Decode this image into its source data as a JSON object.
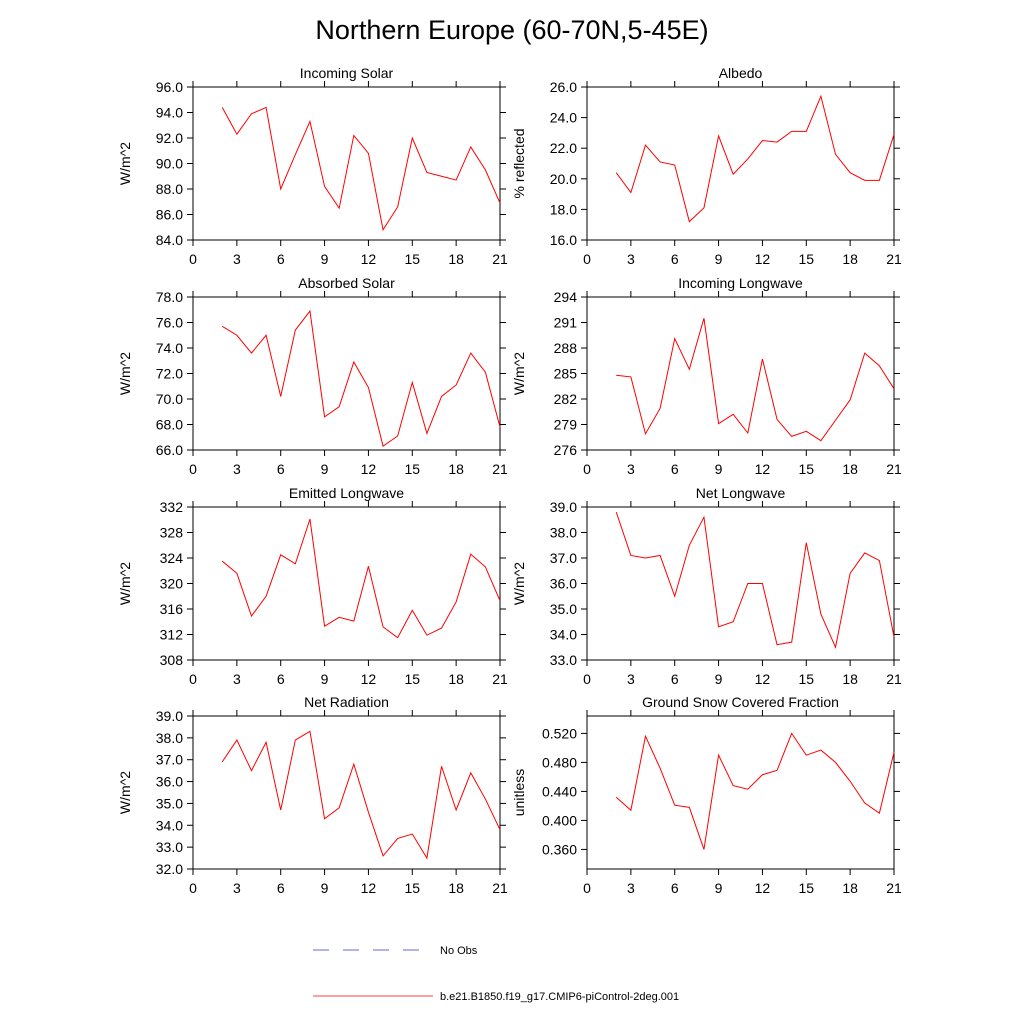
{
  "title": "Northern Europe (60-70N,5-45E)",
  "chart_data": [
    {
      "type": "line",
      "title": "Incoming Solar",
      "y_label": "W/m^2",
      "x": [
        2,
        3,
        4,
        5,
        6,
        7,
        8,
        9,
        10,
        11,
        12,
        13,
        14,
        15,
        16,
        17,
        18,
        19,
        20,
        21
      ],
      "xlim": [
        0,
        21
      ],
      "xticks": [
        0,
        3,
        6,
        9,
        12,
        15,
        18,
        21
      ],
      "ylim": [
        84,
        96
      ],
      "yticks": [
        {
          "value": 84,
          "label": "84.0"
        },
        {
          "value": 86,
          "label": "86.0"
        },
        {
          "value": 88,
          "label": "88.0"
        },
        {
          "value": 90,
          "label": "90.0"
        },
        {
          "value": 92,
          "label": "92.0"
        },
        {
          "value": 94,
          "label": "94.0"
        },
        {
          "value": 96,
          "label": "96.0"
        }
      ],
      "series": [
        {
          "color": "#ff0000",
          "values": [
            94.4,
            92.3,
            93.9,
            94.4,
            88.0,
            90.7,
            93.3,
            88.2,
            86.5,
            92.2,
            90.8,
            84.8,
            86.6,
            92.0,
            89.3,
            89.0,
            88.7,
            91.3,
            89.5,
            86.9
          ]
        }
      ]
    },
    {
      "type": "line",
      "title": "Albedo",
      "y_label": "% reflected",
      "x": [
        2,
        3,
        4,
        5,
        6,
        7,
        8,
        9,
        10,
        11,
        12,
        13,
        14,
        15,
        16,
        17,
        18,
        19,
        20,
        21
      ],
      "xlim": [
        0,
        21
      ],
      "xticks": [
        0,
        3,
        6,
        9,
        12,
        15,
        18,
        21
      ],
      "ylim": [
        16,
        26
      ],
      "yticks": [
        {
          "value": 16,
          "label": "16.0"
        },
        {
          "value": 18,
          "label": "18.0"
        },
        {
          "value": 20,
          "label": "20.0"
        },
        {
          "value": 22,
          "label": "22.0"
        },
        {
          "value": 24,
          "label": "24.0"
        },
        {
          "value": 26,
          "label": "26.0"
        }
      ],
      "series": [
        {
          "color": "#ff0000",
          "values": [
            20.4,
            19.1,
            22.2,
            21.1,
            20.9,
            17.2,
            18.1,
            22.8,
            20.3,
            21.3,
            22.5,
            22.4,
            23.1,
            23.1,
            25.4,
            21.6,
            20.4,
            19.9,
            19.9,
            22.9
          ]
        }
      ]
    },
    {
      "type": "line",
      "title": "Absorbed Solar",
      "y_label": "W/m^2",
      "x": [
        2,
        3,
        4,
        5,
        6,
        7,
        8,
        9,
        10,
        11,
        12,
        13,
        14,
        15,
        16,
        17,
        18,
        19,
        20,
        21
      ],
      "xlim": [
        0,
        21
      ],
      "xticks": [
        0,
        3,
        6,
        9,
        12,
        15,
        18,
        21
      ],
      "ylim": [
        66,
        78
      ],
      "yticks": [
        {
          "value": 66,
          "label": "66.0"
        },
        {
          "value": 68,
          "label": "68.0"
        },
        {
          "value": 70,
          "label": "70.0"
        },
        {
          "value": 72,
          "label": "72.0"
        },
        {
          "value": 74,
          "label": "74.0"
        },
        {
          "value": 76,
          "label": "76.0"
        },
        {
          "value": 78,
          "label": "78.0"
        }
      ],
      "series": [
        {
          "color": "#ff0000",
          "values": [
            75.7,
            75.0,
            73.6,
            75.0,
            70.2,
            75.4,
            76.9,
            68.6,
            69.4,
            72.9,
            70.9,
            66.3,
            67.1,
            71.3,
            67.3,
            70.2,
            71.1,
            73.6,
            72.1,
            67.8
          ]
        }
      ]
    },
    {
      "type": "line",
      "title": "Incoming Longwave",
      "y_label": "W/m^2",
      "x": [
        2,
        3,
        4,
        5,
        6,
        7,
        8,
        9,
        10,
        11,
        12,
        13,
        14,
        15,
        16,
        17,
        18,
        19,
        20,
        21
      ],
      "xlim": [
        0,
        21
      ],
      "xticks": [
        0,
        3,
        6,
        9,
        12,
        15,
        18,
        21
      ],
      "ylim": [
        276,
        294
      ],
      "yticks": [
        276,
        279,
        282,
        285,
        288,
        291,
        294
      ],
      "series": [
        {
          "color": "#ff0000",
          "values": [
            284.8,
            284.6,
            277.9,
            280.9,
            289.1,
            285.5,
            291.5,
            279.1,
            280.2,
            278.0,
            286.7,
            279.6,
            277.6,
            278.2,
            277.1,
            279.5,
            281.9,
            287.4,
            285.9,
            283.2
          ]
        }
      ]
    },
    {
      "type": "line",
      "title": "Emitted Longwave",
      "y_label": "W/m^2",
      "x": [
        2,
        3,
        4,
        5,
        6,
        7,
        8,
        9,
        10,
        11,
        12,
        13,
        14,
        15,
        16,
        17,
        18,
        19,
        20,
        21
      ],
      "xlim": [
        0,
        21
      ],
      "xticks": [
        0,
        3,
        6,
        9,
        12,
        15,
        18,
        21
      ],
      "ylim": [
        308,
        332
      ],
      "yticks": [
        308,
        312,
        316,
        320,
        324,
        328,
        332
      ],
      "series": [
        {
          "color": "#ff0000",
          "values": [
            323.5,
            321.6,
            314.9,
            318.0,
            324.5,
            323.1,
            330.1,
            313.3,
            314.7,
            314.1,
            322.7,
            313.2,
            311.5,
            315.8,
            311.9,
            313.0,
            317.1,
            324.6,
            322.6,
            317.3
          ]
        }
      ]
    },
    {
      "type": "line",
      "title": "Net Longwave",
      "y_label": "W/m^2",
      "x": [
        2,
        3,
        4,
        5,
        6,
        7,
        8,
        9,
        10,
        11,
        12,
        13,
        14,
        15,
        16,
        17,
        18,
        19,
        20,
        21
      ],
      "xlim": [
        0,
        21
      ],
      "xticks": [
        0,
        3,
        6,
        9,
        12,
        15,
        18,
        21
      ],
      "ylim": [
        33,
        39
      ],
      "yticks": [
        {
          "value": 33,
          "label": "33.0"
        },
        {
          "value": 34,
          "label": "34.0"
        },
        {
          "value": 35,
          "label": "35.0"
        },
        {
          "value": 36,
          "label": "36.0"
        },
        {
          "value": 37,
          "label": "37.0"
        },
        {
          "value": 38,
          "label": "38.0"
        },
        {
          "value": 39,
          "label": "39.0"
        }
      ],
      "series": [
        {
          "color": "#ff0000",
          "values": [
            38.8,
            37.1,
            37.0,
            37.1,
            35.5,
            37.5,
            38.6,
            34.3,
            34.5,
            36.0,
            36.0,
            33.6,
            33.7,
            37.6,
            34.8,
            33.5,
            36.4,
            37.2,
            36.9,
            33.9
          ]
        }
      ]
    },
    {
      "type": "line",
      "title": "Net Radiation",
      "y_label": "W/m^2",
      "x": [
        2,
        3,
        4,
        5,
        6,
        7,
        8,
        9,
        10,
        11,
        12,
        13,
        14,
        15,
        16,
        17,
        18,
        19,
        20,
        21
      ],
      "xlim": [
        0,
        21
      ],
      "xticks": [
        0,
        3,
        6,
        9,
        12,
        15,
        18,
        21
      ],
      "ylim": [
        32,
        39
      ],
      "yticks": [
        {
          "value": 32,
          "label": "32.0"
        },
        {
          "value": 33,
          "label": "33.0"
        },
        {
          "value": 34,
          "label": "34.0"
        },
        {
          "value": 35,
          "label": "35.0"
        },
        {
          "value": 36,
          "label": "36.0"
        },
        {
          "value": 37,
          "label": "37.0"
        },
        {
          "value": 38,
          "label": "38.0"
        },
        {
          "value": 39,
          "label": "39.0"
        }
      ],
      "series": [
        {
          "color": "#ff0000",
          "values": [
            36.9,
            37.9,
            36.5,
            37.8,
            34.7,
            37.9,
            38.3,
            34.3,
            34.8,
            36.8,
            34.6,
            32.6,
            33.4,
            33.6,
            32.5,
            36.7,
            34.7,
            36.4,
            35.2,
            33.8
          ]
        }
      ]
    },
    {
      "type": "line",
      "title": "Ground Snow Covered Fraction",
      "y_label": "unitless",
      "x": [
        2,
        3,
        4,
        5,
        6,
        7,
        8,
        9,
        10,
        11,
        12,
        13,
        14,
        15,
        16,
        17,
        18,
        19,
        20,
        21
      ],
      "xlim": [
        0,
        21
      ],
      "xticks": [
        0,
        3,
        6,
        9,
        12,
        15,
        18,
        21
      ],
      "ylim": [
        0.333,
        0.544
      ],
      "yticks": [
        {
          "value": 0.36,
          "label": "0.360"
        },
        {
          "value": 0.4,
          "label": "0.400"
        },
        {
          "value": 0.44,
          "label": "0.440"
        },
        {
          "value": 0.48,
          "label": "0.480"
        },
        {
          "value": 0.52,
          "label": "0.520"
        }
      ],
      "series": [
        {
          "color": "#ff0000",
          "values": [
            0.432,
            0.414,
            0.516,
            0.472,
            0.421,
            0.418,
            0.36,
            0.49,
            0.448,
            0.443,
            0.463,
            0.469,
            0.52,
            0.49,
            0.497,
            0.48,
            0.454,
            0.424,
            0.41,
            0.494
          ]
        }
      ]
    }
  ],
  "legend": [
    {
      "label": "No Obs",
      "color": "#3333cc",
      "dashed": true
    },
    {
      "label": "b.e21.B1850.f19_g17.CMIP6-piControl-2deg.001",
      "color": "#ff0000",
      "dashed": false
    }
  ]
}
